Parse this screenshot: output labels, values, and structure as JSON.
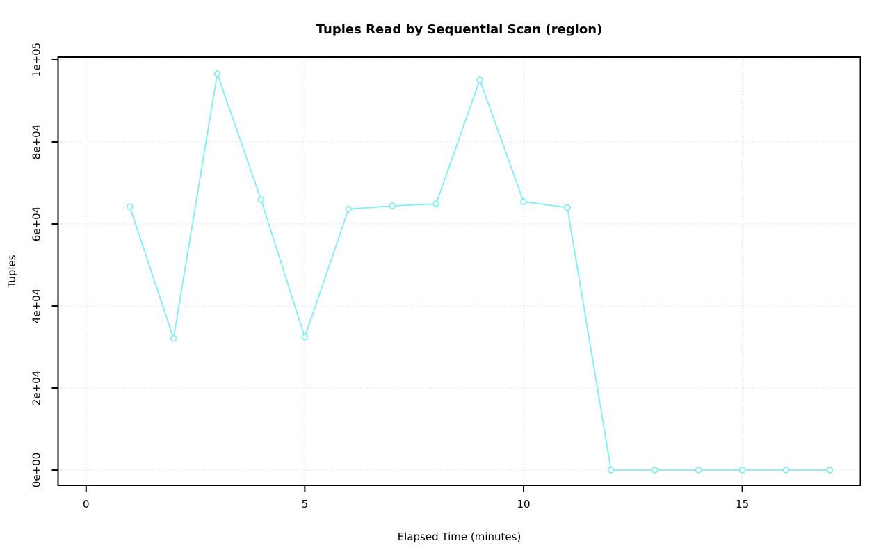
{
  "chart_data": {
    "type": "line",
    "title": "Tuples Read by Sequential Scan (region)",
    "xlabel": "Elapsed Time (minutes)",
    "ylabel": "Tuples",
    "series": [
      {
        "name": "region",
        "x": [
          1,
          2,
          3,
          4,
          5,
          6,
          7,
          8,
          9,
          10,
          11,
          12,
          13,
          14,
          15,
          16,
          17
        ],
        "y": [
          64200,
          32100,
          96600,
          65900,
          32400,
          63600,
          64400,
          64900,
          95100,
          65400,
          64000,
          0,
          0,
          0,
          0,
          0,
          0
        ]
      }
    ],
    "x_ticks": {
      "values": [
        0,
        5,
        10,
        15
      ],
      "labels": [
        "0",
        "5",
        "10",
        "15"
      ]
    },
    "y_ticks": {
      "values": [
        0,
        20000,
        40000,
        60000,
        80000,
        100000
      ],
      "labels": [
        "0e+00",
        "2e+04",
        "4e+04",
        "6e+04",
        "8e+04",
        "1e+05"
      ]
    },
    "xlim": [
      -0.64,
      17.7
    ],
    "ylim": [
      -3730,
      100680
    ],
    "grid": true,
    "grid_style": "dotted",
    "legend": "none",
    "marker": "open-circle",
    "colors": {
      "line": "#7deef7",
      "marker_stroke": "#7deef7",
      "marker_fill": "#ffffff",
      "grid": "#d2d2d2",
      "axis": "#000000",
      "background": "#ffffff"
    }
  }
}
